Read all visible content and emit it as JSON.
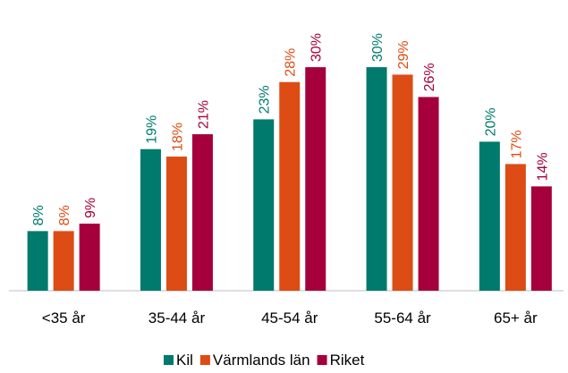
{
  "chart_data": {
    "type": "bar",
    "categories": [
      "<35 år",
      "35-44 år",
      "45-54 år",
      "55-64 år",
      "65+ år"
    ],
    "series": [
      {
        "name": "Kil",
        "color": "#007a6c",
        "values": [
          8,
          19,
          23,
          30,
          20
        ],
        "value_labels": [
          "8%",
          "19%",
          "23%",
          "30%",
          "20%"
        ]
      },
      {
        "name": "Värmlands län",
        "color": "#dd4c14",
        "values": [
          8,
          18,
          28,
          29,
          17
        ],
        "value_labels": [
          "8%",
          "18%",
          "28%",
          "29%",
          "17%"
        ]
      },
      {
        "name": "Riket",
        "color": "#a5003c",
        "values": [
          9,
          21,
          30,
          26,
          14
        ],
        "value_labels": [
          "9%",
          "21%",
          "30%",
          "26%",
          "14%"
        ]
      }
    ],
    "legend": "bottom"
  }
}
